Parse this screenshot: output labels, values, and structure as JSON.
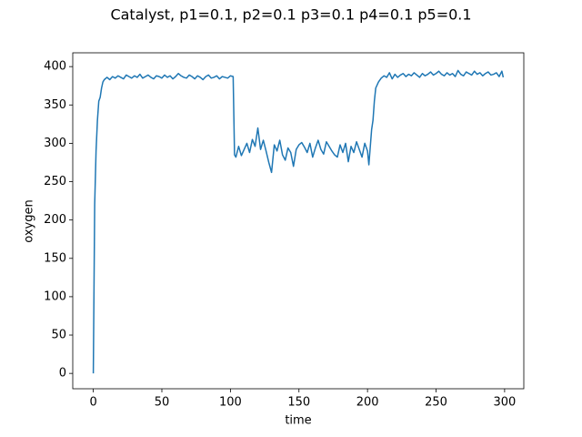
{
  "chart_data": {
    "type": "line",
    "title": "Catalyst, p1=0.1, p2=0.1 p3=0.1 p4=0.1 p5=0.1",
    "x_label": "time",
    "y_label": "oxygen",
    "x": [
      0,
      1,
      2,
      3,
      4,
      5,
      6,
      7,
      8,
      10,
      12,
      14,
      16,
      18,
      20,
      22,
      24,
      26,
      28,
      30,
      32,
      34,
      36,
      38,
      40,
      42,
      44,
      46,
      48,
      50,
      52,
      54,
      56,
      58,
      60,
      62,
      64,
      66,
      68,
      70,
      72,
      74,
      76,
      78,
      80,
      82,
      84,
      86,
      88,
      90,
      92,
      94,
      96,
      98,
      100,
      102,
      103,
      104,
      106,
      108,
      110,
      112,
      114,
      116,
      118,
      120,
      122,
      124,
      126,
      128,
      130,
      132,
      134,
      136,
      138,
      140,
      142,
      144,
      146,
      148,
      150,
      152,
      154,
      156,
      158,
      160,
      162,
      164,
      166,
      168,
      170,
      172,
      174,
      176,
      178,
      180,
      182,
      184,
      186,
      188,
      190,
      192,
      194,
      196,
      198,
      200,
      201,
      202,
      203,
      204,
      205,
      206,
      208,
      210,
      212,
      214,
      216,
      218,
      220,
      222,
      224,
      226,
      228,
      230,
      232,
      234,
      236,
      238,
      240,
      242,
      244,
      246,
      248,
      250,
      252,
      254,
      256,
      258,
      260,
      262,
      264,
      266,
      268,
      270,
      272,
      274,
      276,
      278,
      280,
      282,
      284,
      286,
      288,
      290,
      292,
      294,
      296,
      298,
      299
    ],
    "series": [
      {
        "name": "oxygen",
        "color": "#1f77b4",
        "values": [
          0,
          220,
          290,
          330,
          355,
          360,
          372,
          380,
          383,
          386,
          383,
          387,
          385,
          388,
          386,
          384,
          389,
          387,
          385,
          388,
          386,
          390,
          385,
          387,
          389,
          386,
          384,
          388,
          387,
          385,
          389,
          386,
          388,
          384,
          387,
          391,
          388,
          386,
          385,
          389,
          387,
          384,
          388,
          386,
          383,
          387,
          389,
          385,
          386,
          388,
          384,
          387,
          386,
          385,
          388,
          387,
          285,
          282,
          296,
          284,
          292,
          300,
          288,
          305,
          296,
          320,
          292,
          304,
          290,
          275,
          262,
          298,
          290,
          304,
          285,
          278,
          294,
          288,
          270,
          292,
          298,
          301,
          295,
          288,
          300,
          282,
          294,
          304,
          292,
          286,
          302,
          296,
          290,
          285,
          282,
          298,
          288,
          300,
          276,
          296,
          288,
          302,
          292,
          282,
          300,
          290,
          272,
          295,
          318,
          330,
          355,
          372,
          380,
          385,
          388,
          386,
          392,
          384,
          390,
          386,
          389,
          391,
          387,
          390,
          388,
          392,
          389,
          386,
          391,
          388,
          390,
          393,
          389,
          391,
          394,
          390,
          388,
          392,
          389,
          391,
          387,
          395,
          390,
          388,
          393,
          391,
          389,
          394,
          390,
          392,
          388,
          391,
          393,
          389,
          390,
          392,
          387,
          394,
          386
        ]
      }
    ],
    "xlim": [
      -15,
      314
    ],
    "ylim": [
      -20,
      418
    ],
    "xticks": [
      0,
      50,
      100,
      150,
      200,
      250,
      300
    ],
    "yticks": [
      0,
      50,
      100,
      150,
      200,
      250,
      300,
      350,
      400
    ],
    "grid": false
  }
}
